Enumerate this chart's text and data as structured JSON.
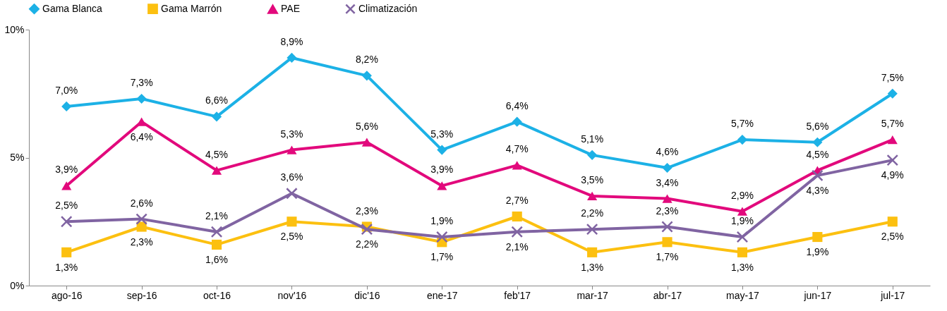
{
  "chart_data": {
    "type": "line",
    "categories": [
      "ago-16",
      "sep-16",
      "oct-16",
      "nov'16",
      "dic'16",
      "ene-17",
      "feb'17",
      "mar-17",
      "abr-17",
      "may-17",
      "jun-17",
      "jul-17"
    ],
    "ylim": [
      0,
      10
    ],
    "yticks": [
      {
        "value": 0,
        "label": "0%"
      },
      {
        "value": 5,
        "label": "5%"
      },
      {
        "value": 10,
        "label": "10%"
      }
    ],
    "grid": false,
    "legend": "top",
    "series": [
      {
        "name": "Gama Blanca",
        "color": "#1cb1e6",
        "marker": "diamond",
        "values": [
          7.0,
          7.3,
          6.6,
          8.9,
          8.2,
          5.3,
          6.4,
          5.1,
          4.6,
          5.7,
          5.6,
          7.5
        ],
        "value_labels": [
          "7,0%",
          "7,3%",
          "6,6%",
          "8,9%",
          "8,2%",
          "5,3%",
          "6,4%",
          "5,1%",
          "4,6%",
          "5,7%",
          "5,6%",
          "7,5%"
        ]
      },
      {
        "name": "Gama Marrón",
        "color": "#fcc010",
        "marker": "square",
        "values": [
          1.3,
          2.3,
          1.6,
          2.5,
          2.3,
          1.7,
          2.7,
          1.3,
          1.7,
          1.3,
          1.9,
          2.5
        ],
        "value_labels": [
          "1,3%",
          "2,3%",
          "1,6%",
          "2,5%",
          "2,3%",
          "1,7%",
          "2,7%",
          "1,3%",
          "1,7%",
          "1,3%",
          "1,9%",
          "2,5%"
        ]
      },
      {
        "name": "PAE",
        "color": "#e2097c",
        "marker": "triangle",
        "values": [
          3.9,
          6.4,
          4.5,
          5.3,
          5.6,
          3.9,
          4.7,
          3.5,
          3.4,
          2.9,
          4.5,
          5.7
        ],
        "value_labels": [
          "3,9%",
          "6,4%",
          "4,5%",
          "5,3%",
          "5,6%",
          "3,9%",
          "4,7%",
          "3,5%",
          "3,4%",
          "2,9%",
          "4,5%",
          "5,7%"
        ]
      },
      {
        "name": "Climatización",
        "color": "#8064a2",
        "marker": "cross",
        "values": [
          2.5,
          2.6,
          2.1,
          3.6,
          2.2,
          1.9,
          2.1,
          2.2,
          2.3,
          1.9,
          4.3,
          4.9
        ],
        "value_labels": [
          "2,5%",
          "2,6%",
          "2,1%",
          "3,6%",
          "2,2%",
          "1,9%",
          "2,1%",
          "2,2%",
          "2,3%",
          "1,9%",
          "4,3%",
          "4,9%"
        ]
      }
    ]
  }
}
